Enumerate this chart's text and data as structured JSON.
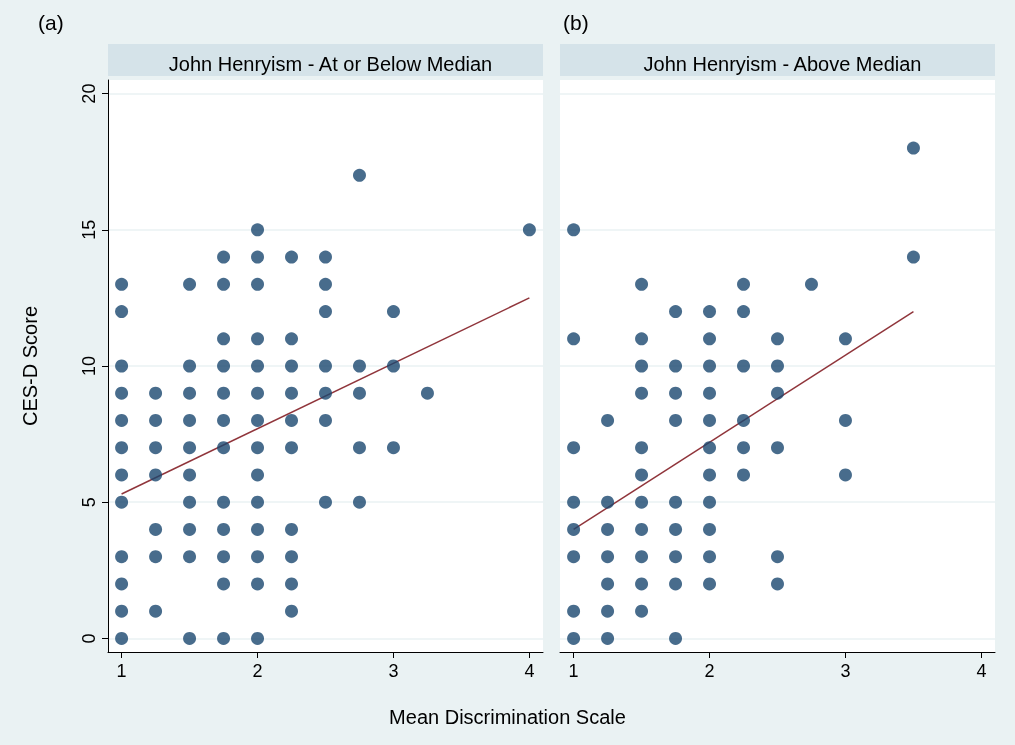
{
  "chart_data": [
    {
      "type": "scatter",
      "title": "John Henryism - At or Below Median",
      "annotations": [
        "(a)"
      ],
      "ylabel": "CES-D Score",
      "xlabel": "Mean Discrimination Scale",
      "xlim": [
        0.9,
        4.1
      ],
      "xticks": [
        1,
        2,
        3,
        4
      ],
      "ylim": [
        -0.5,
        20.5
      ],
      "yticks": [
        0,
        5,
        10,
        15,
        20
      ],
      "grid": "y",
      "series": [
        {
          "marker": "circle",
          "color": "#1a476f",
          "x": [
            1,
            1,
            1,
            1,
            1,
            1,
            1,
            1,
            1,
            1,
            1,
            1,
            1.25,
            1.25,
            1.25,
            1.25,
            1.25,
            1.25,
            1.25,
            1.5,
            1.5,
            1.5,
            1.5,
            1.5,
            1.5,
            1.5,
            1.5,
            1.5,
            1.5,
            1.75,
            1.75,
            1.75,
            1.75,
            1.75,
            1.75,
            1.75,
            1.75,
            1.75,
            1.75,
            1.75,
            1.75,
            2,
            2,
            2,
            2,
            2,
            2,
            2,
            2,
            2,
            2,
            2,
            2,
            2,
            2,
            2.25,
            2.25,
            2.25,
            2.25,
            2.25,
            2.25,
            2.25,
            2.25,
            2.25,
            2.25,
            2.5,
            2.5,
            2.5,
            2.5,
            2.5,
            2.5,
            2.5,
            2.75,
            2.75,
            2.75,
            2.75,
            2.75,
            3,
            3,
            3,
            3.25,
            4
          ],
          "values": [
            13,
            12,
            10,
            9,
            8,
            7,
            6,
            5,
            3,
            2,
            1,
            0,
            9,
            8,
            7,
            6,
            4,
            3,
            1,
            13,
            10,
            9,
            8,
            7,
            6,
            5,
            4,
            3,
            0,
            14,
            13,
            11,
            10,
            9,
            8,
            7,
            5,
            4,
            3,
            2,
            0,
            15,
            14,
            13,
            11,
            10,
            9,
            8,
            7,
            6,
            5,
            4,
            3,
            2,
            0,
            14,
            11,
            10,
            9,
            8,
            7,
            4,
            3,
            2,
            1,
            14,
            13,
            12,
            10,
            9,
            8,
            5,
            17,
            10,
            9,
            7,
            5,
            12,
            10,
            7,
            9,
            15
          ]
        },
        {
          "type": "line",
          "marker": "none",
          "color": "#90353b",
          "x": [
            1,
            4
          ],
          "values": [
            5.3,
            12.5
          ]
        }
      ]
    },
    {
      "type": "scatter",
      "title": "John Henryism - Above Median",
      "annotations": [
        "(b)"
      ],
      "xlim": [
        0.9,
        4.1
      ],
      "xticks": [
        1,
        2,
        3,
        4
      ],
      "ylim": [
        -0.5,
        20.5
      ],
      "yticks": [
        0,
        5,
        10,
        15,
        20
      ],
      "grid": "y",
      "tick_labels": "x",
      "series": [
        {
          "marker": "circle",
          "color": "#1a476f",
          "x": [
            1,
            1,
            1,
            1,
            1,
            1,
            1,
            1,
            1.25,
            1.25,
            1.25,
            1.25,
            1.25,
            1.25,
            1.25,
            1.5,
            1.5,
            1.5,
            1.5,
            1.5,
            1.5,
            1.5,
            1.5,
            1.5,
            1.5,
            1.5,
            1.75,
            1.75,
            1.75,
            1.75,
            1.75,
            1.75,
            1.75,
            1.75,
            1.75,
            2,
            2,
            2,
            2,
            2,
            2,
            2,
            2,
            2,
            2,
            2,
            2.25,
            2.25,
            2.25,
            2.25,
            2.25,
            2.25,
            2.5,
            2.5,
            2.5,
            2.5,
            2.5,
            2.5,
            2.75,
            3,
            3,
            3,
            3.5,
            3.5
          ],
          "values": [
            15,
            11,
            7,
            5,
            4,
            3,
            1,
            0,
            8,
            5,
            4,
            3,
            2,
            1,
            0,
            13,
            11,
            10,
            9,
            7,
            6,
            5,
            4,
            3,
            2,
            1,
            12,
            10,
            9,
            8,
            5,
            4,
            3,
            2,
            0,
            12,
            11,
            10,
            9,
            8,
            7,
            6,
            5,
            4,
            3,
            2,
            13,
            12,
            10,
            8,
            7,
            6,
            11,
            10,
            9,
            7,
            3,
            2,
            13,
            11,
            8,
            6,
            18,
            14
          ]
        },
        {
          "type": "line",
          "marker": "none",
          "color": "#90353b",
          "x": [
            1,
            3.5
          ],
          "values": [
            4,
            12
          ]
        }
      ]
    }
  ]
}
